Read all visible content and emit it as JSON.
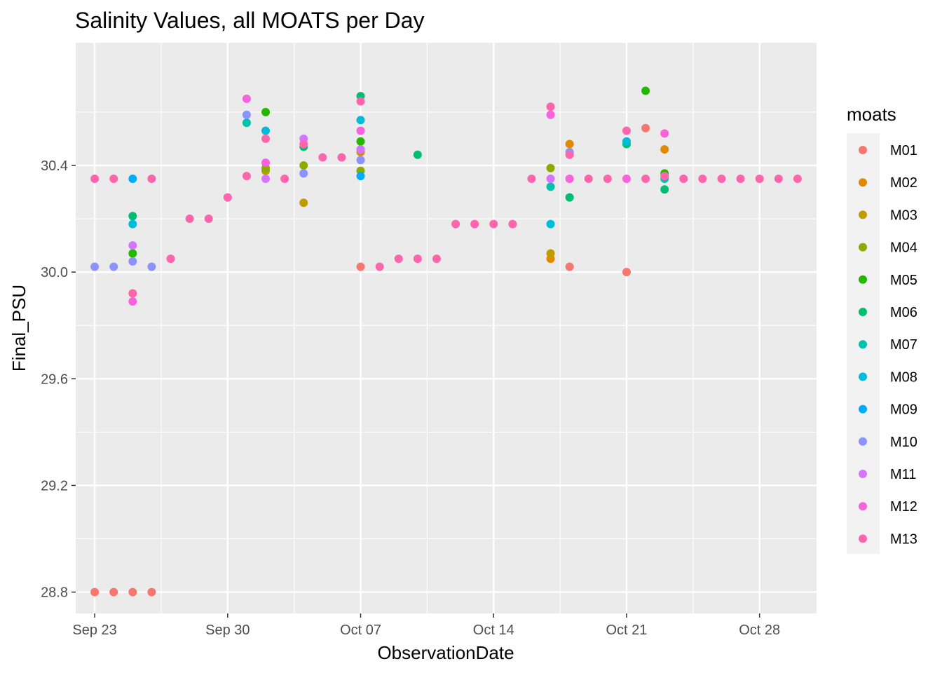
{
  "chart_data": {
    "type": "scatter",
    "title": "Salinity Values, all MOATS per Day",
    "xlabel": "ObservationDate",
    "ylabel": "Final_PSU",
    "x_type": "date",
    "xlim": [
      "2019-09-22",
      "2019-10-31"
    ],
    "ylim": [
      28.72,
      30.86
    ],
    "x_ticks": [
      {
        "date": "2019-09-23",
        "label": "Sep 23"
      },
      {
        "date": "2019-09-30",
        "label": "Sep 30"
      },
      {
        "date": "2019-10-07",
        "label": "Oct 07"
      },
      {
        "date": "2019-10-14",
        "label": "Oct 14"
      },
      {
        "date": "2019-10-21",
        "label": "Oct 21"
      },
      {
        "date": "2019-10-28",
        "label": "Oct 28"
      }
    ],
    "y_ticks": [
      28.8,
      29.2,
      29.6,
      30.0,
      30.4
    ],
    "grid": true,
    "legend": {
      "title": "moats",
      "position": "right"
    },
    "series": [
      {
        "name": "M01",
        "color": "#F8766D",
        "points": [
          [
            "2019-09-23",
            28.8
          ],
          [
            "2019-09-24",
            28.8
          ],
          [
            "2019-09-25",
            28.8
          ],
          [
            "2019-09-26",
            28.8
          ],
          [
            "2019-10-07",
            30.02
          ],
          [
            "2019-10-18",
            30.02
          ],
          [
            "2019-10-21",
            30.0
          ],
          [
            "2019-10-22",
            30.54
          ]
        ]
      },
      {
        "name": "M02",
        "color": "#E18A00",
        "points": [
          [
            "2019-10-07",
            30.45
          ],
          [
            "2019-10-17",
            30.05
          ],
          [
            "2019-10-18",
            30.48
          ],
          [
            "2019-10-23",
            30.46
          ]
        ]
      },
      {
        "name": "M03",
        "color": "#BE9C00",
        "points": [
          [
            "2019-10-04",
            30.26
          ],
          [
            "2019-10-17",
            30.07
          ],
          [
            "2019-10-02",
            30.38
          ]
        ]
      },
      {
        "name": "M04",
        "color": "#8CAB00",
        "points": [
          [
            "2019-10-02",
            30.39
          ],
          [
            "2019-10-04",
            30.4
          ],
          [
            "2019-10-07",
            30.38
          ],
          [
            "2019-10-17",
            30.39
          ]
        ]
      },
      {
        "name": "M05",
        "color": "#24B700",
        "points": [
          [
            "2019-09-25",
            30.07
          ],
          [
            "2019-10-02",
            30.6
          ],
          [
            "2019-10-07",
            30.49
          ],
          [
            "2019-10-22",
            30.68
          ],
          [
            "2019-10-23",
            30.37
          ]
        ]
      },
      {
        "name": "M06",
        "color": "#00BE70",
        "points": [
          [
            "2019-09-25",
            30.21
          ],
          [
            "2019-10-04",
            30.47
          ],
          [
            "2019-10-07",
            30.66
          ],
          [
            "2019-10-10",
            30.44
          ],
          [
            "2019-10-18",
            30.28
          ],
          [
            "2019-10-21",
            30.48
          ],
          [
            "2019-10-23",
            30.31
          ]
        ]
      },
      {
        "name": "M07",
        "color": "#00C1AB",
        "points": [
          [
            "2019-10-01",
            30.56
          ],
          [
            "2019-10-17",
            30.32
          ],
          [
            "2019-10-23",
            30.35
          ]
        ]
      },
      {
        "name": "M08",
        "color": "#00BBDA",
        "points": [
          [
            "2019-09-25",
            30.18
          ],
          [
            "2019-10-02",
            30.53
          ],
          [
            "2019-10-07",
            30.57
          ],
          [
            "2019-10-17",
            30.18
          ],
          [
            "2019-10-21",
            30.49
          ]
        ]
      },
      {
        "name": "M09",
        "color": "#00ACFC",
        "points": [
          [
            "2019-09-25",
            30.35
          ],
          [
            "2019-10-07",
            30.36
          ]
        ]
      },
      {
        "name": "M10",
        "color": "#8B93FF",
        "points": [
          [
            "2019-09-23",
            30.02
          ],
          [
            "2019-09-24",
            30.02
          ],
          [
            "2019-09-25",
            30.04
          ],
          [
            "2019-09-26",
            30.02
          ],
          [
            "2019-10-01",
            30.59
          ],
          [
            "2019-10-04",
            30.37
          ],
          [
            "2019-10-07",
            30.42
          ],
          [
            "2019-10-18",
            30.45
          ]
        ]
      },
      {
        "name": "M11",
        "color": "#D575FE",
        "points": [
          [
            "2019-09-25",
            30.1
          ],
          [
            "2019-10-02",
            30.35
          ],
          [
            "2019-10-04",
            30.5
          ],
          [
            "2019-10-07",
            30.46
          ],
          [
            "2019-10-17",
            30.35
          ]
        ]
      },
      {
        "name": "M12",
        "color": "#F962DD",
        "points": [
          [
            "2019-09-25",
            29.89
          ],
          [
            "2019-10-01",
            30.65
          ],
          [
            "2019-10-02",
            30.41
          ],
          [
            "2019-10-07",
            30.53
          ],
          [
            "2019-10-17",
            30.59
          ],
          [
            "2019-10-18",
            30.35
          ],
          [
            "2019-10-21",
            30.35
          ],
          [
            "2019-10-23",
            30.52
          ]
        ]
      },
      {
        "name": "M13",
        "color": "#FF65AC",
        "points": [
          [
            "2019-09-23",
            30.35
          ],
          [
            "2019-09-24",
            30.35
          ],
          [
            "2019-09-25",
            29.92
          ],
          [
            "2019-09-26",
            30.35
          ],
          [
            "2019-09-27",
            30.05
          ],
          [
            "2019-09-28",
            30.2
          ],
          [
            "2019-09-29",
            30.2
          ],
          [
            "2019-09-30",
            30.28
          ],
          [
            "2019-10-01",
            30.36
          ],
          [
            "2019-10-02",
            30.5
          ],
          [
            "2019-10-03",
            30.35
          ],
          [
            "2019-10-04",
            30.48
          ],
          [
            "2019-10-05",
            30.43
          ],
          [
            "2019-10-06",
            30.43
          ],
          [
            "2019-10-07",
            30.64
          ],
          [
            "2019-10-08",
            30.02
          ],
          [
            "2019-10-09",
            30.05
          ],
          [
            "2019-10-10",
            30.05
          ],
          [
            "2019-10-11",
            30.05
          ],
          [
            "2019-10-12",
            30.18
          ],
          [
            "2019-10-13",
            30.18
          ],
          [
            "2019-10-14",
            30.18
          ],
          [
            "2019-10-15",
            30.18
          ],
          [
            "2019-10-16",
            30.35
          ],
          [
            "2019-10-17",
            30.62
          ],
          [
            "2019-10-18",
            30.44
          ],
          [
            "2019-10-19",
            30.35
          ],
          [
            "2019-10-20",
            30.35
          ],
          [
            "2019-10-21",
            30.53
          ],
          [
            "2019-10-22",
            30.35
          ],
          [
            "2019-10-23",
            30.36
          ],
          [
            "2019-10-24",
            30.35
          ],
          [
            "2019-10-25",
            30.35
          ],
          [
            "2019-10-26",
            30.35
          ],
          [
            "2019-10-27",
            30.35
          ],
          [
            "2019-10-28",
            30.35
          ],
          [
            "2019-10-29",
            30.35
          ],
          [
            "2019-10-30",
            30.35
          ]
        ]
      }
    ]
  }
}
